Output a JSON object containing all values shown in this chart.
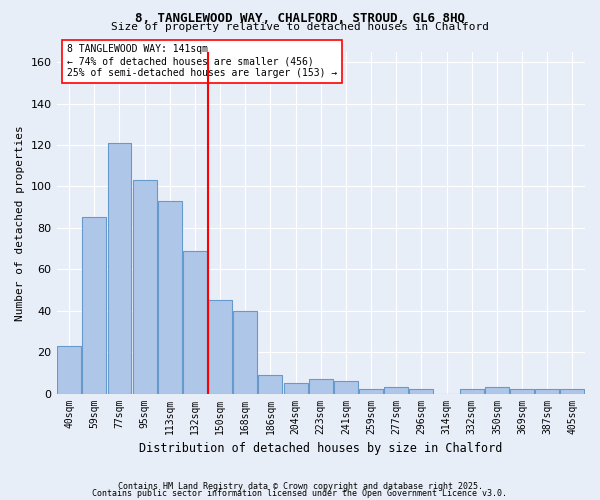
{
  "title1": "8, TANGLEWOOD WAY, CHALFORD, STROUD, GL6 8HQ",
  "title2": "Size of property relative to detached houses in Chalford",
  "xlabel": "Distribution of detached houses by size in Chalford",
  "ylabel": "Number of detached properties",
  "bin_labels": [
    "40sqm",
    "59sqm",
    "77sqm",
    "95sqm",
    "113sqm",
    "132sqm",
    "150sqm",
    "168sqm",
    "186sqm",
    "204sqm",
    "223sqm",
    "241sqm",
    "259sqm",
    "277sqm",
    "296sqm",
    "314sqm",
    "332sqm",
    "350sqm",
    "369sqm",
    "387sqm",
    "405sqm"
  ],
  "bar_heights": [
    23,
    85,
    121,
    103,
    93,
    69,
    45,
    40,
    9,
    5,
    7,
    6,
    2,
    3,
    2,
    0,
    2,
    3,
    2,
    2,
    2
  ],
  "bar_color": "#aec6e8",
  "bar_edge_color": "#6699cc",
  "vline_bin": 5,
  "vline_color": "red",
  "annotation_text": "8 TANGLEWOOD WAY: 141sqm\n← 74% of detached houses are smaller (456)\n25% of semi-detached houses are larger (153) →",
  "annotation_box_color": "white",
  "annotation_box_edge": "red",
  "ylim": [
    0,
    165
  ],
  "yticks": [
    0,
    20,
    40,
    60,
    80,
    100,
    120,
    140,
    160
  ],
  "footer1": "Contains HM Land Registry data © Crown copyright and database right 2025.",
  "footer2": "Contains public sector information licensed under the Open Government Licence v3.0.",
  "bg_color": "#e8eef8",
  "grid_color": "white"
}
